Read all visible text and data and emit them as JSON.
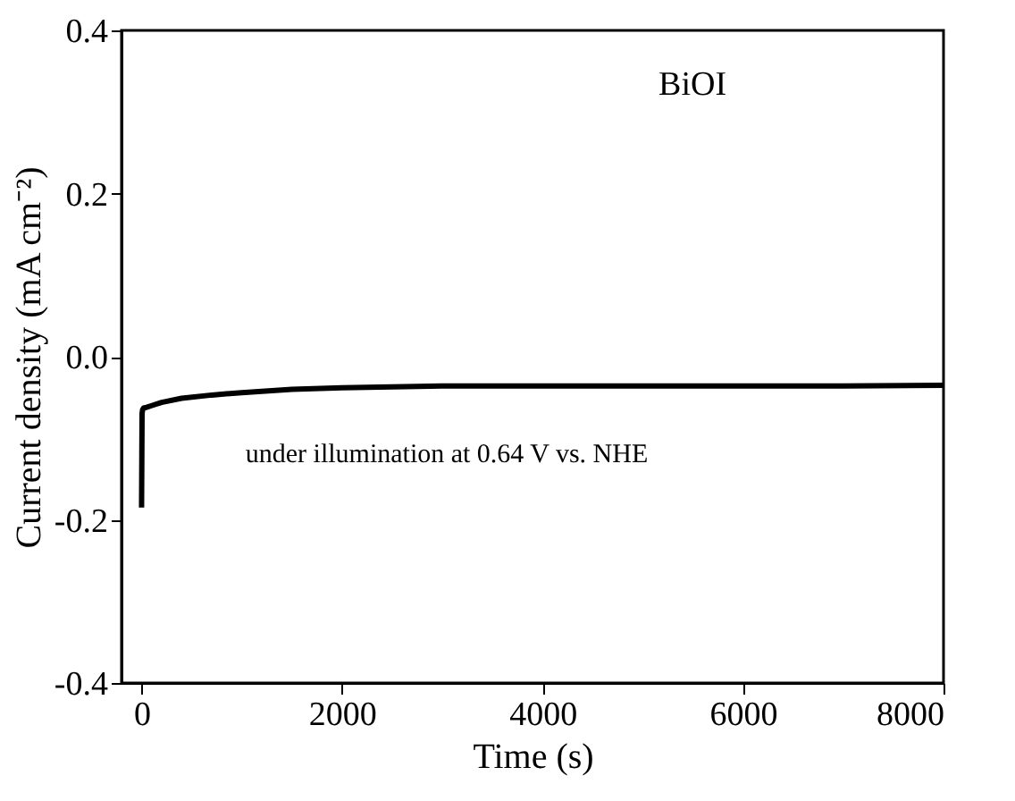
{
  "chart_data": {
    "type": "line",
    "xlabel": "Time (s)",
    "ylabel": "Current density (mA cm⁻²)",
    "x": [
      0,
      5,
      10,
      20,
      50,
      100,
      200,
      400,
      700,
      1000,
      1500,
      2000,
      3000,
      4000,
      5000,
      6000,
      7000,
      8000
    ],
    "series": [
      {
        "color": "#000000",
        "values": [
          -0.185,
          -0.07,
          -0.065,
          -0.063,
          -0.062,
          -0.06,
          -0.056,
          -0.051,
          -0.047,
          -0.044,
          -0.04,
          -0.038,
          -0.036,
          -0.036,
          -0.036,
          -0.036,
          -0.036,
          -0.035
        ]
      }
    ],
    "xlim": [
      -200,
      8000
    ],
    "xticks": [
      0,
      2000,
      4000,
      6000,
      8000
    ],
    "ylim": [
      -0.4,
      0.4
    ],
    "yticks": [
      {
        "value": -0.4,
        "label": "-0.4"
      },
      {
        "value": -0.2,
        "label": "-0.2"
      },
      {
        "value": 0,
        "label": "0.0"
      },
      {
        "value": 0.2,
        "label": "0.2"
      },
      {
        "value": 0.4,
        "label": "0.4"
      }
    ],
    "annotations": [
      "BiOI",
      "under illumination at 0.64 V vs. NHE"
    ],
    "grid": false
  }
}
